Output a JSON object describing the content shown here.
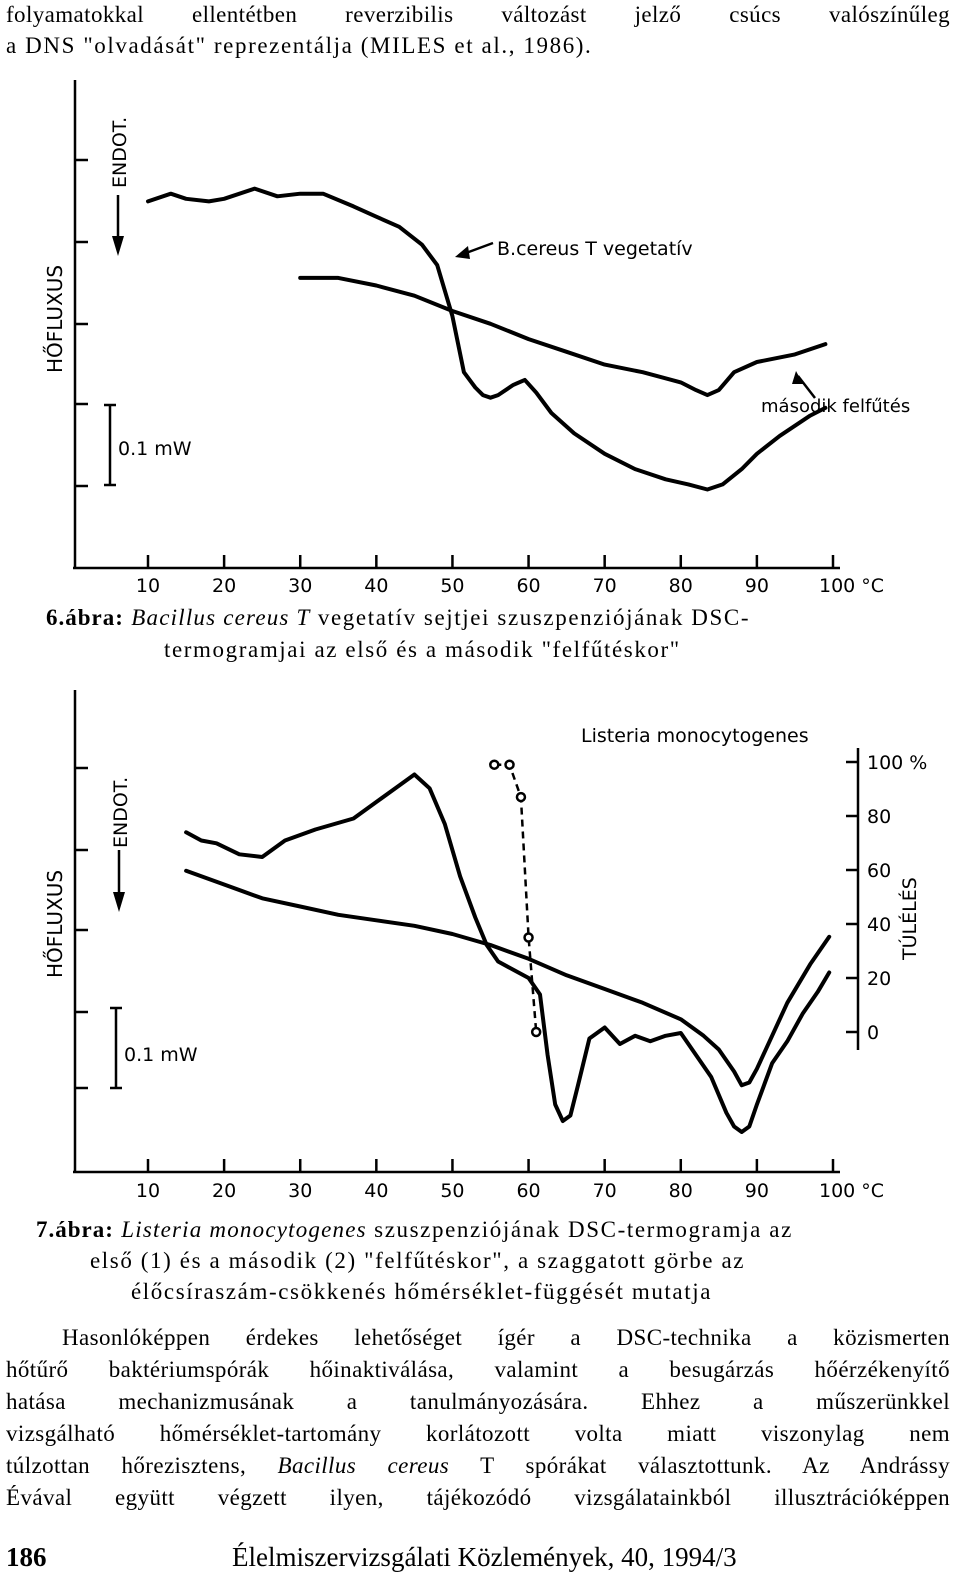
{
  "top_text": [
    "folyamatokkal ellentétben reverzibilis változást jelző csúcs valószínűleg",
    "a DNS \"olvadását\" reprezentálja (MILES et al., 1986)."
  ],
  "figure6": {
    "caption_num": "6.ábra:",
    "caption_italic": "Bacillus cereus T",
    "caption_rest": " vegetatív sejtjei szuszpenziójának DSC-",
    "caption_line2": "termogramjai az első és a második \"felfűtéskor\"",
    "ylabel": "HŐFLUXUS",
    "endo_label": "ENDOT.",
    "scale_label": "0.1 mW",
    "curve_label_1": "B.cereus T vegetatív",
    "curve_label_2": "második felfűtés",
    "x_ticks": [
      "10",
      "20",
      "30",
      "40",
      "50",
      "60",
      "70",
      "80",
      "90",
      "100 °C"
    ]
  },
  "figure7": {
    "caption_num": "7.ábra:",
    "caption_italic": "Listeria monocytogenes",
    "caption_rest": " szuszpenziójának DSC-termogramja az",
    "caption_line2": "első (1) és a második (2) \"felfűtéskor\", a szaggatott görbe az",
    "caption_line3": "élőcsíraszám-csökkenés hőmérséklet-függését mutatja",
    "ylabel": "HŐFLUXUS",
    "endo_label": "ENDOT.",
    "scale_label": "0.1 mW",
    "title": "Listeria monocytogenes",
    "right_axis_label": "TÚLÉLÉS",
    "right_ticks": [
      "100 %",
      "80",
      "60",
      "40",
      "20",
      "0"
    ],
    "x_ticks": [
      "10",
      "20",
      "30",
      "40",
      "50",
      "60",
      "70",
      "80",
      "90",
      "100 °C"
    ]
  },
  "chart_data": [
    {
      "type": "line",
      "title": "",
      "xlabel": "°C",
      "ylabel": "HŐFLUXUS",
      "xlim": [
        10,
        100
      ],
      "series": [
        {
          "name": "B.cereus T vegetatív",
          "x": [
            10,
            13,
            15,
            18,
            20,
            24,
            27,
            30,
            33,
            37,
            40,
            43,
            46,
            48,
            50,
            51.5,
            53,
            54,
            55,
            56,
            58,
            59.5,
            61,
            63,
            66,
            70,
            74,
            78,
            81,
            83.5,
            85.5,
            88,
            90,
            93,
            97,
            99
          ],
          "y": [
            0.83,
            0.86,
            0.84,
            0.83,
            0.84,
            0.88,
            0.85,
            0.86,
            0.86,
            0.81,
            0.77,
            0.73,
            0.66,
            0.58,
            0.38,
            0.16,
            0.1,
            0.07,
            0.06,
            0.07,
            0.11,
            0.13,
            0.08,
            0.0,
            -0.08,
            -0.16,
            -0.22,
            -0.26,
            -0.28,
            -0.3,
            -0.28,
            -0.22,
            -0.16,
            -0.09,
            -0.01,
            0.02
          ]
        },
        {
          "name": "második felfűtés",
          "x": [
            30,
            35,
            40,
            45,
            50,
            55,
            60,
            65,
            70,
            75,
            80,
            82,
            83.5,
            85,
            87,
            90,
            95,
            99
          ],
          "y": [
            0.53,
            0.53,
            0.5,
            0.46,
            0.4,
            0.35,
            0.29,
            0.24,
            0.19,
            0.16,
            0.12,
            0.09,
            0.07,
            0.09,
            0.16,
            0.2,
            0.23,
            0.27
          ]
        }
      ]
    },
    {
      "type": "line",
      "title": "Listeria monocytogenes",
      "xlabel": "°C",
      "ylabel": "HŐFLUXUS",
      "y2label": "TÚLÉLÉS",
      "xlim": [
        10,
        100
      ],
      "y2lim": [
        0,
        100
      ],
      "series": [
        {
          "name": "1",
          "x": [
            15,
            17,
            19,
            22,
            25,
            28,
            32,
            37,
            40,
            43,
            45,
            47,
            49,
            51,
            53,
            54.5,
            56,
            58,
            60,
            61.5,
            62.5,
            63.5,
            64.5,
            65.5,
            66.5,
            68,
            70,
            72,
            74,
            76,
            78,
            80,
            82,
            84,
            86,
            87,
            88,
            89,
            90,
            92,
            94,
            96,
            98,
            99.5
          ],
          "y": [
            0.69,
            0.66,
            0.65,
            0.61,
            0.6,
            0.66,
            0.7,
            0.74,
            0.8,
            0.86,
            0.9,
            0.85,
            0.72,
            0.53,
            0.38,
            0.28,
            0.22,
            0.19,
            0.16,
            0.1,
            -0.12,
            -0.3,
            -0.36,
            -0.34,
            -0.23,
            -0.06,
            -0.02,
            -0.08,
            -0.05,
            -0.07,
            -0.05,
            -0.04,
            -0.12,
            -0.2,
            -0.33,
            -0.38,
            -0.4,
            -0.38,
            -0.3,
            -0.15,
            -0.07,
            0.03,
            0.11,
            0.18
          ]
        },
        {
          "name": "2",
          "x": [
            15,
            20,
            25,
            30,
            35,
            40,
            45,
            50,
            55,
            60,
            65,
            70,
            75,
            80,
            83,
            85,
            87,
            88,
            89,
            90,
            92,
            94,
            97,
            99.5
          ],
          "y": [
            0.55,
            0.5,
            0.45,
            0.42,
            0.39,
            0.37,
            0.35,
            0.32,
            0.28,
            0.23,
            0.17,
            0.12,
            0.07,
            0.01,
            -0.05,
            -0.1,
            -0.18,
            -0.23,
            -0.22,
            -0.17,
            -0.05,
            0.07,
            0.21,
            0.31
          ]
        },
        {
          "name": "TÚLÉLÉS",
          "x": [
            55.5,
            57.5,
            59,
            60,
            61
          ],
          "y": [
            99,
            99,
            87,
            35,
            0
          ]
        }
      ]
    }
  ],
  "body_text": [
    "Hasonlóképpen érdekes lehetőséget ígér a DSC-technika a közismerten",
    "hőtűrő baktériumspórák hőinaktiválása, valamint a besugárzás hőérzékenyítő",
    "hatása mechanizmusának a tanulmányozására. Ehhez a műszerünkkel",
    "vizsgálható hőmérséklet-tartomány korlátozott volta miatt viszonylag nem",
    "túlzottan hőrezisztens, ",
    "Bacillus cereus",
    " T spórákat választottunk. Az Andrássy",
    "Évával együtt végzett ilyen, tájékozódó vizsgálatainkból illusztrációképpen"
  ],
  "footer": {
    "page_number": "186",
    "journal": "Élelmiszervizsgálati Közlemények, 40, 1994/3"
  }
}
